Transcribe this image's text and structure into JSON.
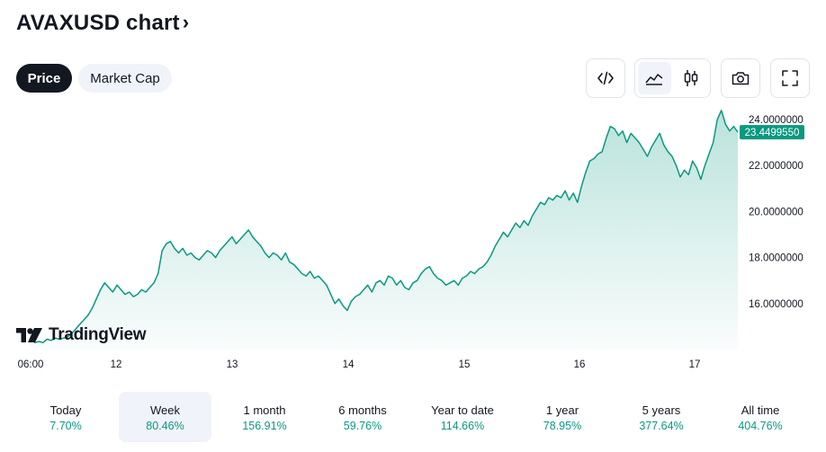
{
  "header": {
    "title": "AVAXUSD chart",
    "chevron": "›"
  },
  "tabs": [
    {
      "label": "Price",
      "active": true
    },
    {
      "label": "Market Cap",
      "active": false
    }
  ],
  "toolbar": {
    "embed_icon": "code-icon",
    "area_chart_icon": "area-chart-icon",
    "candles_icon": "candlestick-icon",
    "snapshot_icon": "camera-icon",
    "fullscreen_icon": "fullscreen-icon",
    "active_chart_style": "area"
  },
  "brand": {
    "logo_text": "TradingView"
  },
  "colors": {
    "line": "#089981",
    "price_label_bg": "#089981",
    "positive": "#089981",
    "text": "#131722",
    "axis_text": "#131722"
  },
  "chart_data": {
    "type": "area",
    "x_tick_labels": [
      "06:00",
      "12",
      "13",
      "14",
      "15",
      "16",
      "17"
    ],
    "y_tick_labels": [
      "24.0000000",
      "22.0000000",
      "20.0000000",
      "18.0000000",
      "16.0000000"
    ],
    "ylim": [
      14.2,
      24.6
    ],
    "last_price_label": "23.4499550",
    "grid": false,
    "series": [
      {
        "values": [
          14.55,
          14.3,
          14.35,
          14.3,
          14.45,
          14.4,
          14.5,
          14.45,
          14.5,
          14.55,
          14.7,
          14.9,
          15.1,
          15.3,
          15.5,
          15.8,
          16.2,
          16.6,
          16.9,
          16.7,
          16.5,
          16.8,
          16.6,
          16.4,
          16.5,
          16.3,
          16.4,
          16.6,
          16.5,
          16.7,
          16.9,
          17.3,
          18.3,
          18.6,
          18.7,
          18.4,
          18.2,
          18.4,
          18.1,
          18.2,
          18.0,
          17.9,
          18.1,
          18.3,
          18.2,
          18.0,
          18.3,
          18.5,
          18.7,
          18.9,
          18.6,
          18.8,
          19.0,
          19.2,
          18.9,
          18.7,
          18.5,
          18.2,
          18.0,
          18.2,
          18.1,
          17.9,
          18.2,
          17.8,
          17.7,
          17.5,
          17.3,
          17.2,
          17.4,
          17.1,
          17.2,
          17.0,
          16.8,
          16.4,
          16.0,
          16.2,
          15.9,
          15.7,
          16.1,
          16.3,
          16.4,
          16.6,
          16.8,
          16.5,
          16.9,
          17.0,
          16.8,
          17.2,
          17.1,
          16.8,
          17.0,
          16.7,
          16.6,
          16.9,
          17.0,
          17.3,
          17.5,
          17.6,
          17.3,
          17.1,
          17.0,
          16.8,
          16.9,
          17.0,
          16.8,
          17.1,
          17.2,
          17.4,
          17.3,
          17.5,
          17.6,
          17.8,
          18.1,
          18.5,
          18.8,
          19.1,
          18.9,
          19.2,
          19.5,
          19.3,
          19.6,
          19.4,
          19.8,
          20.1,
          20.4,
          20.3,
          20.6,
          20.5,
          20.7,
          20.6,
          20.9,
          20.5,
          20.8,
          20.4,
          21.1,
          21.7,
          22.2,
          22.3,
          22.5,
          22.6,
          23.2,
          23.7,
          23.6,
          23.3,
          23.5,
          23.0,
          23.4,
          23.2,
          23.0,
          22.7,
          22.4,
          22.8,
          23.1,
          23.4,
          22.9,
          22.6,
          22.4,
          22.0,
          21.5,
          21.8,
          21.6,
          22.2,
          21.9,
          21.4,
          22.0,
          22.5,
          23.0,
          24.0,
          24.4,
          23.8,
          23.5,
          23.7,
          23.45
        ]
      }
    ]
  },
  "periods": [
    {
      "label": "Today",
      "value": "7.70%",
      "active": false
    },
    {
      "label": "Week",
      "value": "80.46%",
      "active": true
    },
    {
      "label": "1 month",
      "value": "156.91%",
      "active": false
    },
    {
      "label": "6 months",
      "value": "59.76%",
      "active": false
    },
    {
      "label": "Year to date",
      "value": "114.66%",
      "active": false
    },
    {
      "label": "1 year",
      "value": "78.95%",
      "active": false
    },
    {
      "label": "5 years",
      "value": "377.64%",
      "active": false
    },
    {
      "label": "All time",
      "value": "404.76%",
      "active": false
    }
  ]
}
